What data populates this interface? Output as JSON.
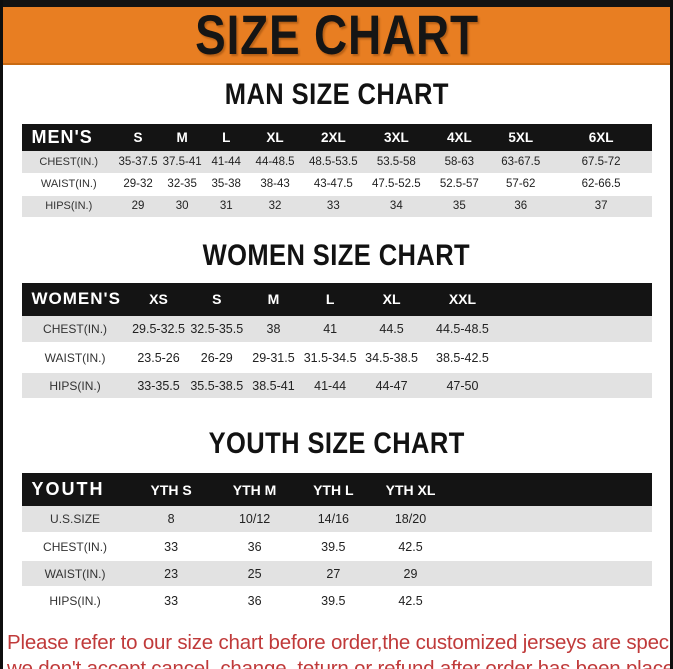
{
  "banner": {
    "title": "SIZE CHART"
  },
  "colors": {
    "banner_bg": "#E87E22",
    "table_header_bg": "#141414",
    "row_stripe": "#e2e2e2",
    "footer_red": "#c03a3a"
  },
  "sections": [
    {
      "heading": "MAN SIZE CHART",
      "table": {
        "header": [
          "MEN'S",
          "S",
          "M",
          "L",
          "XL",
          "2XL",
          "3XL",
          "4XL",
          "5XL",
          "6XL"
        ],
        "rows": [
          [
            "CHEST(IN.)",
            "35-37.5",
            "37.5-41",
            "41-44",
            "44-48.5",
            "48.5-53.5",
            "53.5-58",
            "58-63",
            "63-67.5",
            "67.5-72"
          ],
          [
            "WAIST(IN.)",
            "29-32",
            "32-35",
            "35-38",
            "38-43",
            "43-47.5",
            "47.5-52.5",
            "52.5-57",
            "57-62",
            "62-66.5"
          ],
          [
            "HIPS(IN.)",
            "29",
            "30",
            "31",
            "32",
            "33",
            "34",
            "35",
            "36",
            "37"
          ]
        ]
      }
    },
    {
      "heading": "WOMEN SIZE CHART",
      "table": {
        "header": [
          "WOMEN'S",
          "XS",
          "S",
          "M",
          "L",
          "XL",
          "XXL"
        ],
        "rows": [
          [
            "CHEST(IN.)",
            "29.5-32.5",
            "32.5-35.5",
            "38",
            "41",
            "44.5",
            "44.5-48.5"
          ],
          [
            "WAIST(IN.)",
            "23.5-26",
            "26-29",
            "29-31.5",
            "31.5-34.5",
            "34.5-38.5",
            "38.5-42.5"
          ],
          [
            "HIPS(IN.)",
            "33-35.5",
            "35.5-38.5",
            "38.5-41",
            "41-44",
            "44-47",
            "47-50"
          ]
        ]
      }
    },
    {
      "heading": "YOUTH SIZE CHART",
      "table": {
        "header": [
          "YOUTH",
          "YTH S",
          "YTH M",
          "YTH L",
          "YTH XL"
        ],
        "rows": [
          [
            "U.S.SIZE",
            "8",
            "10/12",
            "14/16",
            "18/20"
          ],
          [
            "CHEST(IN.)",
            "33",
            "36",
            "39.5",
            "42.5"
          ],
          [
            "WAIST(IN.)",
            "23",
            "25",
            "27",
            "29"
          ],
          [
            "HIPS(IN.)",
            "33",
            "36",
            "39.5",
            "42.5"
          ]
        ]
      }
    }
  ],
  "footer": {
    "line1": "Please refer to our size chart before order,the customized jerseys are special products,",
    "line2": "we don't accept cancel, change, teturn or refund after order has been placed!"
  }
}
